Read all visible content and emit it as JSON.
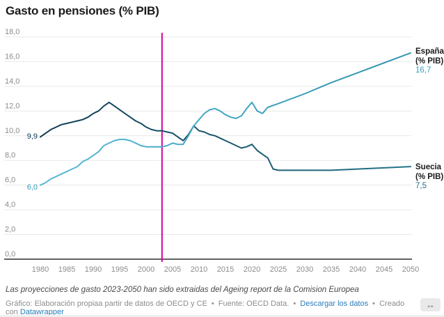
{
  "header": {
    "title": "Gasto en pensiones (% PIB)"
  },
  "chart_data": {
    "type": "line",
    "title": "Gasto en pensiones (% PIB)",
    "xlim": [
      1980,
      2050
    ],
    "ylim": [
      0,
      18
    ],
    "grid": "horizontal",
    "x_ticks": [
      1980,
      1985,
      1990,
      1995,
      2000,
      2005,
      2010,
      2015,
      2020,
      2025,
      2030,
      2035,
      2040,
      2045,
      2050
    ],
    "y_ticks": [
      {
        "value": 0,
        "label": "0,0"
      },
      {
        "value": 2,
        "label": "2,0"
      },
      {
        "value": 4,
        "label": "4,0"
      },
      {
        "value": 6,
        "label": "6,0"
      },
      {
        "value": 8,
        "label": "8,0"
      },
      {
        "value": 10,
        "label": "10,0"
      },
      {
        "value": 12,
        "label": "12,0"
      },
      {
        "value": 14,
        "label": "14,0"
      },
      {
        "value": 16,
        "label": "16,0"
      },
      {
        "value": 18,
        "label": "18,0"
      }
    ],
    "vertical_marker": {
      "year": 2003,
      "color": "#d6009e"
    },
    "series": [
      {
        "name": "Suecia",
        "unit": "(% PIB)",
        "color_start": "#0d3a52",
        "color_end": "#24758a",
        "start_label_color": "#0d3a52",
        "end_label_color": "#20708a",
        "first_value_label": "9,9",
        "last_value_label": "7,5",
        "points": [
          [
            1980,
            9.9
          ],
          [
            1981,
            10.2
          ],
          [
            1982,
            10.5
          ],
          [
            1983,
            10.7
          ],
          [
            1984,
            10.9
          ],
          [
            1985,
            11.0
          ],
          [
            1986,
            11.1
          ],
          [
            1987,
            11.2
          ],
          [
            1988,
            11.3
          ],
          [
            1989,
            11.5
          ],
          [
            1990,
            11.8
          ],
          [
            1991,
            12.0
          ],
          [
            1992,
            12.4
          ],
          [
            1993,
            12.7
          ],
          [
            1994,
            12.4
          ],
          [
            1995,
            12.1
          ],
          [
            1996,
            11.8
          ],
          [
            1997,
            11.5
          ],
          [
            1998,
            11.2
          ],
          [
            1999,
            11.0
          ],
          [
            2000,
            10.7
          ],
          [
            2001,
            10.5
          ],
          [
            2002,
            10.4
          ],
          [
            2003,
            10.4
          ],
          [
            2004,
            10.3
          ],
          [
            2005,
            10.2
          ],
          [
            2006,
            9.9
          ],
          [
            2007,
            9.6
          ],
          [
            2008,
            10.1
          ],
          [
            2009,
            10.8
          ],
          [
            2010,
            10.4
          ],
          [
            2011,
            10.3
          ],
          [
            2012,
            10.1
          ],
          [
            2013,
            10.0
          ],
          [
            2014,
            9.8
          ],
          [
            2015,
            9.6
          ],
          [
            2016,
            9.4
          ],
          [
            2017,
            9.2
          ],
          [
            2018,
            9.0
          ],
          [
            2019,
            9.1
          ],
          [
            2020,
            9.3
          ],
          [
            2021,
            8.8
          ],
          [
            2022,
            8.5
          ],
          [
            2023,
            8.2
          ],
          [
            2024,
            7.3
          ],
          [
            2025,
            7.2
          ],
          [
            2030,
            7.2
          ],
          [
            2035,
            7.2
          ],
          [
            2040,
            7.3
          ],
          [
            2045,
            7.4
          ],
          [
            2050,
            7.5
          ]
        ]
      },
      {
        "name": "España",
        "unit": "(% PIB)",
        "color_start": "#58b9d7",
        "color_end": "#2d92ad",
        "start_label_color": "#2f9cba",
        "end_label_color": "#3aa0bf",
        "first_value_label": "6,0",
        "last_value_label": "16,7",
        "points": [
          [
            1980,
            6.0
          ],
          [
            1981,
            6.2
          ],
          [
            1982,
            6.5
          ],
          [
            1983,
            6.7
          ],
          [
            1984,
            6.9
          ],
          [
            1985,
            7.1
          ],
          [
            1986,
            7.3
          ],
          [
            1987,
            7.5
          ],
          [
            1988,
            7.9
          ],
          [
            1989,
            8.1
          ],
          [
            1990,
            8.4
          ],
          [
            1991,
            8.7
          ],
          [
            1992,
            9.2
          ],
          [
            1993,
            9.4
          ],
          [
            1994,
            9.6
          ],
          [
            1995,
            9.7
          ],
          [
            1996,
            9.7
          ],
          [
            1997,
            9.6
          ],
          [
            1998,
            9.4
          ],
          [
            1999,
            9.2
          ],
          [
            2000,
            9.1
          ],
          [
            2001,
            9.1
          ],
          [
            2002,
            9.1
          ],
          [
            2003,
            9.1
          ],
          [
            2004,
            9.2
          ],
          [
            2005,
            9.4
          ],
          [
            2006,
            9.3
          ],
          [
            2007,
            9.3
          ],
          [
            2008,
            10.0
          ],
          [
            2009,
            10.8
          ],
          [
            2010,
            11.3
          ],
          [
            2011,
            11.8
          ],
          [
            2012,
            12.1
          ],
          [
            2013,
            12.2
          ],
          [
            2014,
            12.0
          ],
          [
            2015,
            11.7
          ],
          [
            2016,
            11.5
          ],
          [
            2017,
            11.4
          ],
          [
            2018,
            11.6
          ],
          [
            2019,
            12.2
          ],
          [
            2020,
            12.7
          ],
          [
            2021,
            12.0
          ],
          [
            2022,
            11.8
          ],
          [
            2023,
            12.3
          ],
          [
            2025,
            12.6
          ],
          [
            2030,
            13.4
          ],
          [
            2035,
            14.3
          ],
          [
            2040,
            15.1
          ],
          [
            2045,
            15.9
          ],
          [
            2050,
            16.7
          ]
        ]
      }
    ]
  },
  "footer": {
    "note": "Las proyecciones de gasto 2023-2050 han sido extraidas del Ageing report de la Comision Europea",
    "credit_text": "Gráfico: Elaboración propiaa partir de datos de OECD y CE",
    "source_text": "Fuente: OECD Data.",
    "download_label": "Descargar los datos",
    "created_with": "Creado con",
    "datawrapper_label": "Datawrapper",
    "separator": "•"
  },
  "controls": {
    "resize_icon": "↔"
  }
}
